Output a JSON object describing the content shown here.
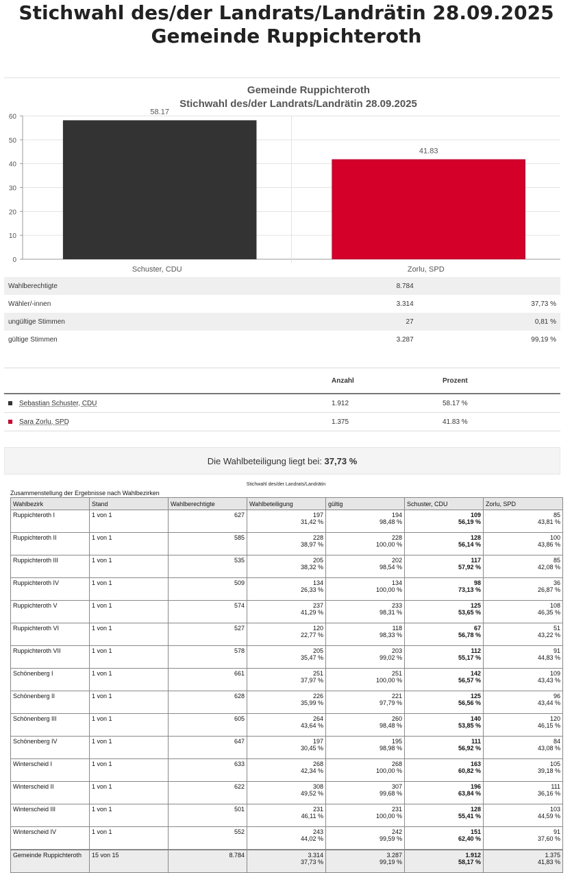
{
  "header": {
    "title_line1": "Stichwahl des/der Landrats/Landrätin 28.09.2025",
    "title_line2": "Gemeinde Ruppichteroth"
  },
  "chart_data": {
    "type": "bar",
    "title": "Gemeinde Ruppichteroth",
    "subtitle": "Stichwahl des/der Landrats/Landrätin 28.09.2025",
    "categories": [
      "Schuster, CDU",
      "Zorlu, SPD"
    ],
    "values": [
      58.17,
      41.83
    ],
    "data_labels": [
      "58.17",
      "41.83"
    ],
    "colors": [
      "#333333",
      "#d4002a"
    ],
    "ylim": [
      0,
      60
    ],
    "yticks": [
      "0",
      "10",
      "20",
      "30",
      "40",
      "50",
      "60"
    ],
    "grid": true
  },
  "stats": [
    {
      "label": "Wahlberechtigte",
      "value": "8.784",
      "percent": ""
    },
    {
      "label": "Wähler/-innen",
      "value": "3.314",
      "percent": "37,73 %"
    },
    {
      "label": "ungültige Stimmen",
      "value": "27",
      "percent": "0,81 %"
    },
    {
      "label": "gültige Stimmen",
      "value": "3.287",
      "percent": "99,19 %"
    }
  ],
  "candidates": {
    "header_count": "Anzahl",
    "header_percent": "Prozent",
    "rows": [
      {
        "name": "Sebastian Schuster, CDU",
        "count": "1.912",
        "percent": "58.17 %",
        "color": "#333333"
      },
      {
        "name": "Sara Zorlu, SPD",
        "count": "1.375",
        "percent": "41.83 %",
        "color": "#d4002a"
      }
    ]
  },
  "turnout": {
    "text": "Die Wahlbeteiligung liegt bei:",
    "value": "37,73 %"
  },
  "report": {
    "title": "Stichwahl des/der Landrats/Landrätin",
    "subtitle": "Zusammenstellung der Ergebnisse nach Wahlbezirken",
    "columns": [
      "Wahlbezirk",
      "Stand",
      "Wahlberechtigte",
      "Wahlbeteiligung",
      "gültig",
      "Schuster, CDU",
      "Zorlu, SPD"
    ],
    "rows": [
      [
        "Ruppichteroth I",
        "1 von 1",
        "627",
        "197",
        "31,42 %",
        "194",
        "98,48 %",
        "109",
        "56,19 %",
        "85",
        "43,81 %"
      ],
      [
        "Ruppichteroth II",
        "1 von 1",
        "585",
        "228",
        "38,97 %",
        "228",
        "100,00 %",
        "128",
        "56,14 %",
        "100",
        "43,86 %"
      ],
      [
        "Ruppichteroth III",
        "1 von 1",
        "535",
        "205",
        "38,32 %",
        "202",
        "98,54 %",
        "117",
        "57,92 %",
        "85",
        "42,08 %"
      ],
      [
        "Ruppichteroth IV",
        "1 von 1",
        "509",
        "134",
        "26,33 %",
        "134",
        "100,00 %",
        "98",
        "73,13 %",
        "36",
        "26,87 %"
      ],
      [
        "Ruppichteroth V",
        "1 von 1",
        "574",
        "237",
        "41,29 %",
        "233",
        "98,31 %",
        "125",
        "53,65 %",
        "108",
        "46,35 %"
      ],
      [
        "Ruppichteroth VI",
        "1 von 1",
        "527",
        "120",
        "22,77 %",
        "118",
        "98,33 %",
        "67",
        "56,78 %",
        "51",
        "43,22 %"
      ],
      [
        "Ruppichteroth VII",
        "1 von 1",
        "578",
        "205",
        "35,47 %",
        "203",
        "99,02 %",
        "112",
        "55,17 %",
        "91",
        "44,83 %"
      ],
      [
        "Schönenberg I",
        "1 von 1",
        "661",
        "251",
        "37,97 %",
        "251",
        "100,00 %",
        "142",
        "56,57 %",
        "109",
        "43,43 %"
      ],
      [
        "Schönenberg II",
        "1 von 1",
        "628",
        "226",
        "35,99 %",
        "221",
        "97,79 %",
        "125",
        "56,56 %",
        "96",
        "43,44 %"
      ],
      [
        "Schönenberg III",
        "1 von 1",
        "605",
        "264",
        "43,64 %",
        "260",
        "98,48 %",
        "140",
        "53,85 %",
        "120",
        "46,15 %"
      ],
      [
        "Schönenberg IV",
        "1 von 1",
        "647",
        "197",
        "30,45 %",
        "195",
        "98,98 %",
        "111",
        "56,92 %",
        "84",
        "43,08 %"
      ],
      [
        "Winterscheid I",
        "1 von 1",
        "633",
        "268",
        "42,34 %",
        "268",
        "100,00 %",
        "163",
        "60,82 %",
        "105",
        "39,18 %"
      ],
      [
        "Winterscheid II",
        "1 von 1",
        "622",
        "308",
        "49,52 %",
        "307",
        "99,68 %",
        "196",
        "63,84 %",
        "111",
        "36,16 %"
      ],
      [
        "Winterscheid III",
        "1 von 1",
        "501",
        "231",
        "46,11 %",
        "231",
        "100,00 %",
        "128",
        "55,41 %",
        "103",
        "44,59 %"
      ],
      [
        "Winterscheid IV",
        "1 von 1",
        "552",
        "243",
        "44,02 %",
        "242",
        "99,59 %",
        "151",
        "62,40 %",
        "91",
        "37,60 %"
      ]
    ],
    "total": [
      "Gemeinde Ruppichteroth",
      "15 von 15",
      "8.784",
      "3.314",
      "37,73 %",
      "3.287",
      "99,19 %",
      "1.912",
      "58,17 %",
      "1.375",
      "41,83 %"
    ]
  }
}
